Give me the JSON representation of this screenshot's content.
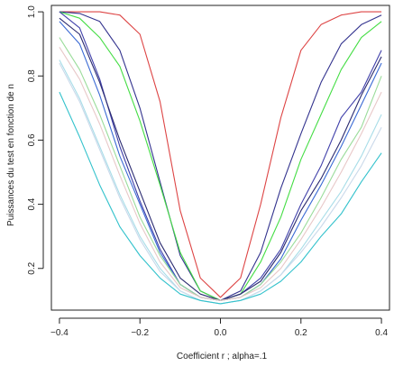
{
  "chart_data": {
    "type": "line",
    "title": "",
    "xlabel": "Coefficient r ; alpha=.1",
    "ylabel": "Puissances du test en fonction de n",
    "xlim": [
      -0.42,
      0.42
    ],
    "ylim": [
      0.07,
      1.02
    ],
    "xticks": [
      -0.4,
      -0.2,
      0.0,
      0.2,
      0.4
    ],
    "xtick_labels": [
      "−0.4",
      "−0.2",
      "0.0",
      "0.2",
      "0.4"
    ],
    "yticks": [
      0.2,
      0.4,
      0.6,
      0.8,
      1.0
    ],
    "ytick_labels": [
      "0.2",
      "0.4",
      "0.6",
      "0.8",
      "1.0"
    ],
    "grid": false,
    "x": [
      -0.4,
      -0.35,
      -0.3,
      -0.25,
      -0.2,
      -0.15,
      -0.1,
      -0.05,
      0.0,
      0.05,
      0.1,
      0.15,
      0.2,
      0.25,
      0.3,
      0.35,
      0.4
    ],
    "series": [
      {
        "color": "#dd4444",
        "values": [
          1.0,
          1.0,
          1.0,
          0.99,
          0.93,
          0.72,
          0.38,
          0.17,
          0.11,
          0.17,
          0.4,
          0.67,
          0.88,
          0.96,
          0.99,
          1.0,
          1.0
        ]
      },
      {
        "color": "#33338e",
        "values": [
          1.0,
          0.995,
          0.97,
          0.88,
          0.7,
          0.47,
          0.24,
          0.13,
          0.1,
          0.13,
          0.25,
          0.45,
          0.62,
          0.78,
          0.9,
          0.96,
          0.99
        ]
      },
      {
        "color": "#44dd44",
        "values": [
          1.0,
          0.98,
          0.92,
          0.83,
          0.66,
          0.46,
          0.25,
          0.13,
          0.1,
          0.12,
          0.22,
          0.36,
          0.54,
          0.68,
          0.82,
          0.92,
          0.97
        ]
      },
      {
        "color": "#4040aa",
        "values": [
          1.0,
          0.95,
          0.79,
          0.58,
          0.41,
          0.26,
          0.15,
          0.11,
          0.1,
          0.12,
          0.17,
          0.26,
          0.4,
          0.52,
          0.67,
          0.75,
          0.88
        ]
      },
      {
        "color": "#2a2a70",
        "values": [
          0.98,
          0.93,
          0.78,
          0.6,
          0.44,
          0.28,
          0.17,
          0.12,
          0.1,
          0.12,
          0.16,
          0.25,
          0.38,
          0.48,
          0.6,
          0.74,
          0.86
        ]
      },
      {
        "color": "#3a6ad4",
        "values": [
          0.97,
          0.9,
          0.74,
          0.55,
          0.4,
          0.25,
          0.15,
          0.11,
          0.1,
          0.11,
          0.15,
          0.23,
          0.35,
          0.46,
          0.58,
          0.71,
          0.84
        ]
      },
      {
        "color": "#9adc9a",
        "values": [
          0.92,
          0.82,
          0.68,
          0.52,
          0.36,
          0.24,
          0.15,
          0.11,
          0.1,
          0.11,
          0.15,
          0.22,
          0.31,
          0.42,
          0.54,
          0.64,
          0.8
        ]
      },
      {
        "color": "#e8c8c8",
        "values": [
          0.89,
          0.79,
          0.65,
          0.49,
          0.34,
          0.22,
          0.14,
          0.11,
          0.1,
          0.11,
          0.14,
          0.2,
          0.29,
          0.39,
          0.5,
          0.62,
          0.75
        ]
      },
      {
        "color": "#a8dde8",
        "values": [
          0.85,
          0.73,
          0.58,
          0.43,
          0.3,
          0.2,
          0.13,
          0.1,
          0.09,
          0.1,
          0.13,
          0.18,
          0.26,
          0.35,
          0.44,
          0.55,
          0.68
        ]
      },
      {
        "color": "#c9d9ea",
        "values": [
          0.84,
          0.72,
          0.57,
          0.42,
          0.29,
          0.19,
          0.13,
          0.1,
          0.09,
          0.1,
          0.13,
          0.18,
          0.25,
          0.33,
          0.42,
          0.52,
          0.64
        ]
      },
      {
        "color": "#33c2cc",
        "values": [
          0.75,
          0.61,
          0.46,
          0.33,
          0.24,
          0.17,
          0.12,
          0.1,
          0.09,
          0.1,
          0.12,
          0.16,
          0.22,
          0.3,
          0.37,
          0.47,
          0.56
        ]
      }
    ]
  }
}
